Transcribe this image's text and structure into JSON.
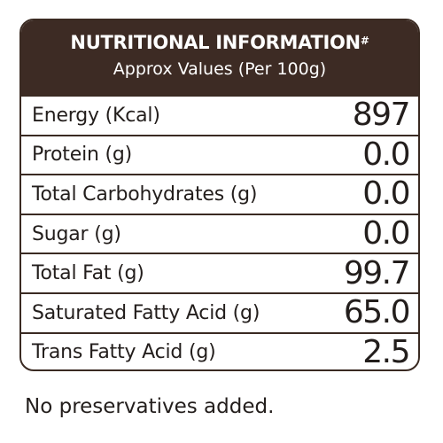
{
  "header": {
    "title": "NUTRITIONAL INFORMATION",
    "title_mark": "#",
    "subtitle": "Approx Values (Per 100g)"
  },
  "rows": [
    {
      "label": "Energy (Kcal)",
      "value": "897"
    },
    {
      "label": "Protein (g)",
      "value": "0.0"
    },
    {
      "label": "Total Carbohydrates (g)",
      "value": "0.0"
    },
    {
      "label": "Sugar (g)",
      "value": "0.0"
    },
    {
      "label": "Total Fat (g)",
      "value": "99.7"
    },
    {
      "label": "Saturated Fatty Acid (g)",
      "value": "65.0"
    },
    {
      "label": "Trans Fatty Acid (g)",
      "value": "2.5"
    }
  ],
  "footer": {
    "note": "No preservatives added."
  },
  "colors": {
    "header_background": "#3d2b24",
    "border": "#3a2a22",
    "text": "#231e1c"
  }
}
